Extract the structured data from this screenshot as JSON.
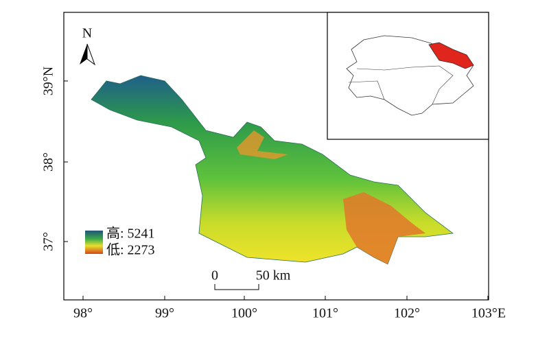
{
  "map": {
    "north_label": "N",
    "x_ticks": [
      "98°",
      "99°",
      "100°",
      "101°",
      "102°",
      "103°E"
    ],
    "y_ticks": [
      "39°N",
      "38°",
      "37°"
    ],
    "legend": {
      "high": "高: 5241",
      "low": "低: 2273"
    },
    "scale_bar": {
      "start": "0",
      "end": "50 km"
    }
  }
}
